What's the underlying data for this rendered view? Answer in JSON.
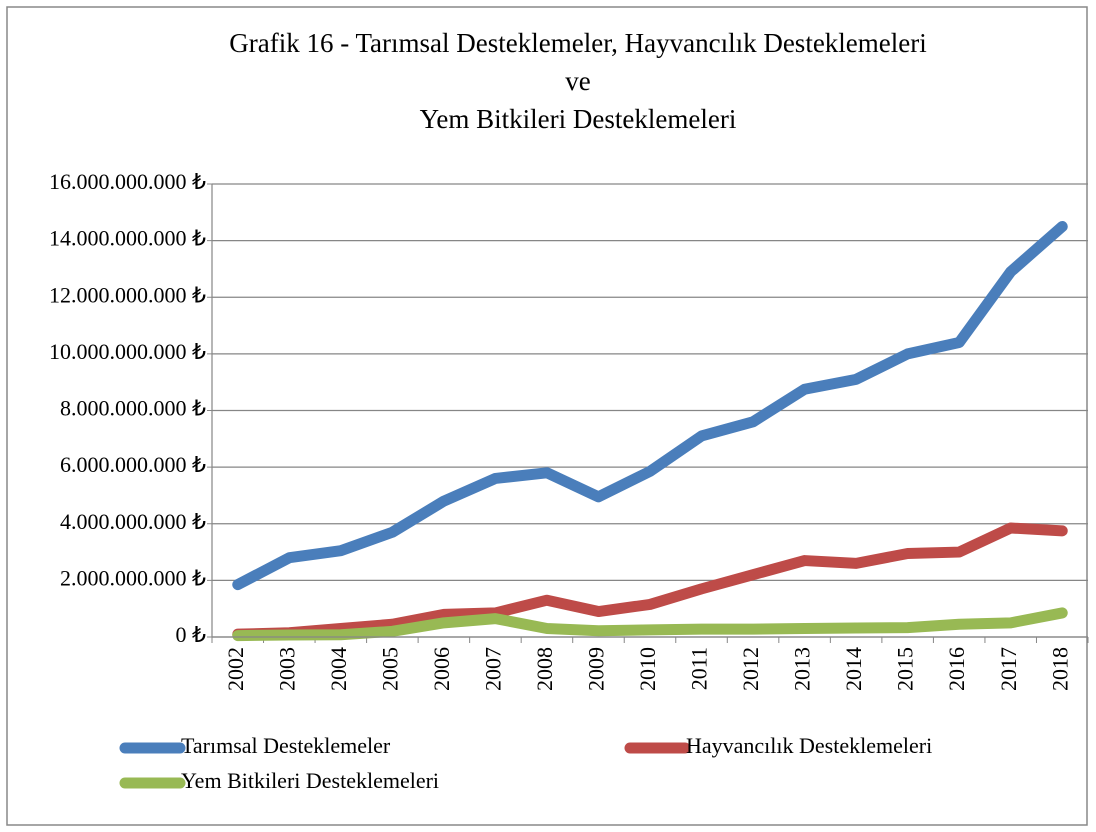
{
  "chart_data": {
    "type": "line",
    "title": [
      "Grafik 16 - Tarımsal Desteklemeler, Hayvancılık Desteklemeleri",
      "ve",
      "Yem Bitkileri Desteklemeleri"
    ],
    "categories": [
      "2002",
      "2003",
      "2004",
      "2005",
      "2006",
      "2007",
      "2008",
      "2009",
      "2010",
      "2011",
      "2012",
      "2013",
      "2014",
      "2015",
      "2016",
      "2017",
      "2018"
    ],
    "series": [
      {
        "name": "Tarımsal Desteklemeler",
        "color": "#4a7ebb",
        "values": [
          1850000000,
          2800000000,
          3050000000,
          3700000000,
          4800000000,
          5600000000,
          5800000000,
          4950000000,
          5850000000,
          7100000000,
          7600000000,
          8750000000,
          9100000000,
          10000000000,
          10400000000,
          12900000000,
          14500000000
        ]
      },
      {
        "name": "Hayvancılık Desteklemeleri",
        "color": "#be4b48",
        "values": [
          100000000,
          150000000,
          300000000,
          450000000,
          800000000,
          850000000,
          1300000000,
          900000000,
          1150000000,
          1700000000,
          2200000000,
          2700000000,
          2600000000,
          2950000000,
          3000000000,
          3850000000,
          3750000000
        ]
      },
      {
        "name": "Yem Bitkileri Desteklemeleri",
        "color": "#98b954",
        "values": [
          50000000,
          70000000,
          80000000,
          200000000,
          500000000,
          650000000,
          300000000,
          220000000,
          250000000,
          280000000,
          280000000,
          300000000,
          320000000,
          330000000,
          450000000,
          500000000,
          850000000
        ]
      }
    ],
    "ylim": [
      0,
      16000000000
    ],
    "yticks": [
      {
        "value": 0,
        "label": "0 ₺"
      },
      {
        "value": 2000000000,
        "label": "2.000.000.000 ₺"
      },
      {
        "value": 4000000000,
        "label": "4.000.000.000 ₺"
      },
      {
        "value": 6000000000,
        "label": "6.000.000.000 ₺"
      },
      {
        "value": 8000000000,
        "label": "8.000.000.000 ₺"
      },
      {
        "value": 10000000000,
        "label": "10.000.000.000 ₺"
      },
      {
        "value": 12000000000,
        "label": "12.000.000.000 ₺"
      },
      {
        "value": 14000000000,
        "label": "14.000.000.000 ₺"
      },
      {
        "value": 16000000000,
        "label": "16.000.000.000 ₺"
      }
    ],
    "grid": true
  }
}
